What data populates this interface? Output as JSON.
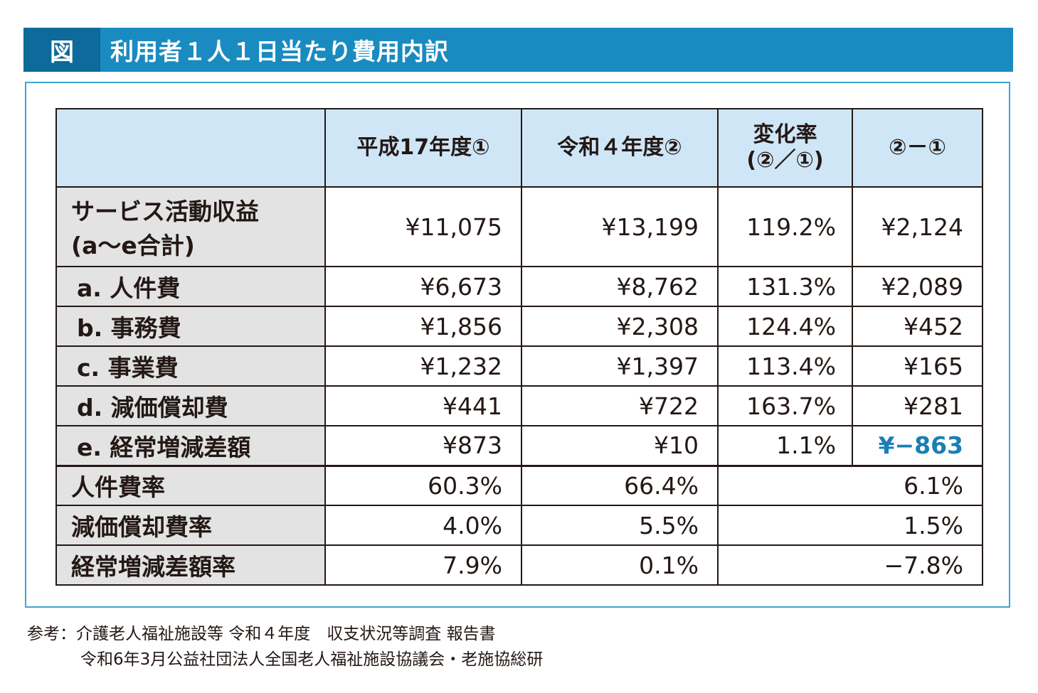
{
  "title": {
    "tag": "図",
    "text": "利用者１人１日当たり費用内訳"
  },
  "header": {
    "col1": "平成17年度①",
    "col2": "令和４年度②",
    "col3_line1": "変化率",
    "col3_line2": "(②／①)",
    "col4": "②－①"
  },
  "rows": [
    {
      "label_line1": "サービス活動収益",
      "label_line2": "(a〜e合計)",
      "v1": "¥11,075",
      "v2": "¥13,199",
      "rate": "119.2%",
      "diff": "¥2,124"
    },
    {
      "label": "a. 人件費",
      "v1": "¥6,673",
      "v2": "¥8,762",
      "rate": "131.3%",
      "diff": "¥2,089"
    },
    {
      "label": "b. 事務費",
      "v1": "¥1,856",
      "v2": "¥2,308",
      "rate": "124.4%",
      "diff": "¥452"
    },
    {
      "label": "c. 事業費",
      "v1": "¥1,232",
      "v2": "¥1,397",
      "rate": "113.4%",
      "diff": "¥165"
    },
    {
      "label": "d. 減価償却費",
      "v1": "¥441",
      "v2": "¥722",
      "rate": "163.7%",
      "diff": "¥281"
    },
    {
      "label": "e. 経常増減差額",
      "v1": "¥873",
      "v2": "¥10",
      "rate": "1.1%",
      "diff": "¥−863"
    }
  ],
  "ratio_rows": [
    {
      "label": "人件費率",
      "v1": "60.3%",
      "v2": "66.4%",
      "diff": "6.1%"
    },
    {
      "label": "減価償却費率",
      "v1": "4.0%",
      "v2": "5.5%",
      "diff": "1.5%"
    },
    {
      "label": "経常増減差額率",
      "v1": "7.9%",
      "v2": "0.1%",
      "diff": "−7.8%"
    }
  ],
  "footnote": {
    "line1": "参考：介護老人福祉施設等 令和４年度　収支状況等調査 報告書",
    "line2": "令和6年3月公益社団法人全国老人福祉施設協議会・老施協総研"
  },
  "colors": {
    "title_bar": "#1a8bc0",
    "title_tag": "#0d6a9a",
    "header_bg": "#cfe6f7",
    "label_bg": "#e3e3e3",
    "negative": "#1a7fb5"
  }
}
